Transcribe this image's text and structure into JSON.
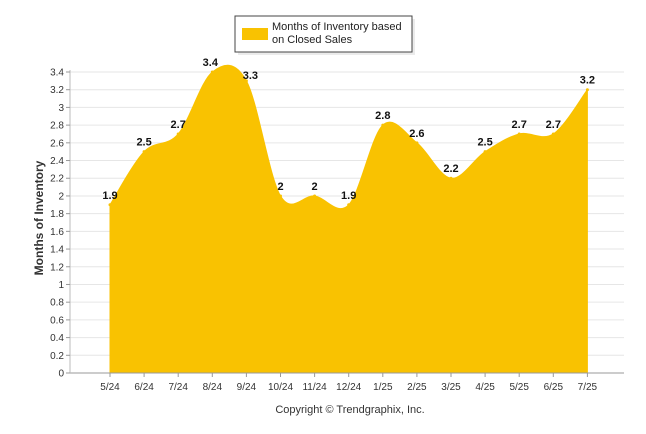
{
  "chart_data": {
    "type": "area",
    "categories": [
      "5/24",
      "6/24",
      "7/24",
      "8/24",
      "9/24",
      "10/24",
      "11/24",
      "12/24",
      "1/25",
      "2/25",
      "3/25",
      "4/25",
      "5/25",
      "6/25",
      "7/25"
    ],
    "series": [
      {
        "name": "Months of Inventory based on Closed Sales",
        "values": [
          1.9,
          2.5,
          2.7,
          3.4,
          3.3,
          2,
          2,
          1.9,
          2.8,
          2.6,
          2.2,
          2.5,
          2.7,
          2.7,
          3.2
        ],
        "color": "#f9c201"
      }
    ],
    "data_labels": [
      "1.9",
      "2.5",
      "2.7",
      "3.4",
      "3.3",
      "2",
      "2",
      "1.9",
      "2.8",
      "2.6",
      "2.2",
      "2.5",
      "2.7",
      "2.7",
      "3.2"
    ],
    "legend_lines": [
      "Months of Inventory based",
      "on Closed Sales"
    ],
    "ylabel": "Months of Inventory",
    "xlabel": "",
    "ylim": [
      0,
      3.4
    ],
    "yticks": [
      "0",
      "0.2",
      "0.4",
      "0.6",
      "0.8",
      "1",
      "1.2",
      "1.4",
      "1.6",
      "1.8",
      "2",
      "2.2",
      "2.4",
      "2.6",
      "2.8",
      "3",
      "3.2",
      "3.4"
    ],
    "grid": true,
    "legend_position": "top-center",
    "footer": "Copyright © Trendgraphix, Inc."
  }
}
